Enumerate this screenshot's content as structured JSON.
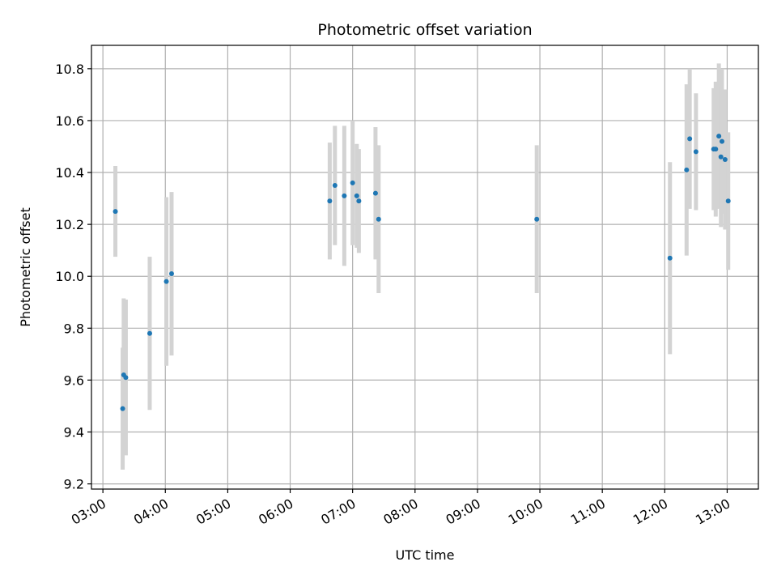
{
  "chart_data": {
    "type": "scatter",
    "title": "Photometric offset variation",
    "xlabel": "UTC time",
    "ylabel": "Photometric offset",
    "grid": true,
    "legend": "none",
    "xlim": [
      "02:49",
      "13:30"
    ],
    "ylim": [
      9.18,
      10.89
    ],
    "x_ticks": [
      "03:00",
      "04:00",
      "05:00",
      "06:00",
      "07:00",
      "08:00",
      "09:00",
      "10:00",
      "11:00",
      "12:00",
      "13:00"
    ],
    "y_ticks": [
      9.2,
      9.4,
      9.6,
      9.8,
      10.0,
      10.2,
      10.4,
      10.6,
      10.8
    ],
    "y_tick_labels": [
      "9.2",
      "9.4",
      "9.6",
      "9.8",
      "10.0",
      "10.2",
      "10.4",
      "10.6",
      "10.8"
    ],
    "colors": {
      "point": "#1f77b4",
      "errorbar": "#d3d3d3",
      "grid": "#b0b0b0"
    },
    "points": [
      {
        "x": "03:12",
        "y": 10.25,
        "yerr": 0.175
      },
      {
        "x": "03:19",
        "y": 9.49,
        "yerr": 0.235
      },
      {
        "x": "03:20",
        "y": 9.62,
        "yerr": 0.295
      },
      {
        "x": "03:22",
        "y": 9.61,
        "yerr": 0.3
      },
      {
        "x": "03:45",
        "y": 9.78,
        "yerr": 0.295
      },
      {
        "x": "04:01",
        "y": 9.98,
        "yerr": 0.325
      },
      {
        "x": "04:06",
        "y": 10.01,
        "yerr": 0.315
      },
      {
        "x": "06:38",
        "y": 10.29,
        "yerr": 0.225
      },
      {
        "x": "06:43",
        "y": 10.35,
        "yerr": 0.23
      },
      {
        "x": "06:52",
        "y": 10.31,
        "yerr": 0.27
      },
      {
        "x": "07:00",
        "y": 10.36,
        "yerr": 0.24
      },
      {
        "x": "07:04",
        "y": 10.31,
        "yerr": 0.2
      },
      {
        "x": "07:06",
        "y": 10.29,
        "yerr": 0.2
      },
      {
        "x": "07:22",
        "y": 10.32,
        "yerr": 0.255
      },
      {
        "x": "07:25",
        "y": 10.22,
        "yerr": 0.285
      },
      {
        "x": "09:57",
        "y": 10.22,
        "yerr": 0.285
      },
      {
        "x": "12:05",
        "y": 10.07,
        "yerr": 0.37
      },
      {
        "x": "12:21",
        "y": 10.41,
        "yerr": 0.33
      },
      {
        "x": "12:24",
        "y": 10.53,
        "yerr": 0.27
      },
      {
        "x": "12:30",
        "y": 10.48,
        "yerr": 0.225
      },
      {
        "x": "12:47",
        "y": 10.49,
        "yerr": 0.235
      },
      {
        "x": "12:49",
        "y": 10.49,
        "yerr": 0.26
      },
      {
        "x": "12:52",
        "y": 10.54,
        "yerr": 0.28
      },
      {
        "x": "12:54",
        "y": 10.46,
        "yerr": 0.27
      },
      {
        "x": "12:55",
        "y": 10.52,
        "yerr": 0.28
      },
      {
        "x": "12:58",
        "y": 10.45,
        "yerr": 0.27
      },
      {
        "x": "13:01",
        "y": 10.29,
        "yerr": 0.265
      }
    ]
  }
}
